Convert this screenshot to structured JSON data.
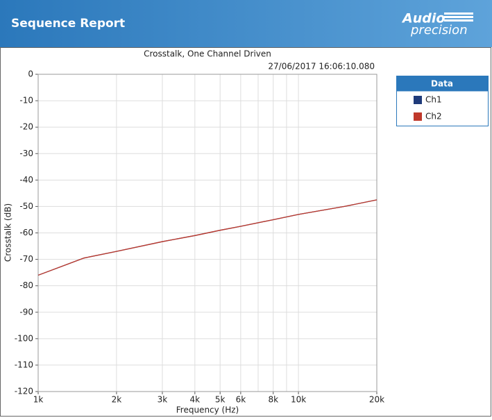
{
  "header": {
    "title": "Sequence Report",
    "logo": [
      "Audio",
      "precision"
    ]
  },
  "chart_data": {
    "type": "line",
    "title": "Crosstalk, One Channel Driven",
    "subtitle": "27/06/2017 16:06:10.080",
    "xlabel": "Frequency (Hz)",
    "ylabel": "Crosstalk (dB)",
    "logo": "AP",
    "x": [
      1000,
      1500,
      2000,
      3000,
      4000,
      5000,
      6000,
      8000,
      10000,
      15000,
      20000
    ],
    "series": [
      {
        "name": "Ch1",
        "color": "#1f3b7a",
        "values": [
          -76,
          -69.5,
          -67,
          -63.3,
          -61,
          -59,
          -57.5,
          -55,
          -53,
          -50,
          -47.5
        ]
      },
      {
        "name": "Ch2",
        "color": "#c0392b",
        "values": [
          -76,
          -69.5,
          -67,
          -63.3,
          -61,
          -59,
          -57.5,
          -55,
          -53,
          -50,
          -47.5
        ]
      }
    ],
    "xscale": "log",
    "xlim": [
      1000,
      20000
    ],
    "ylim": [
      -120,
      0
    ],
    "xticks": [
      {
        "value": 1000,
        "label": "1k"
      },
      {
        "value": 2000,
        "label": "2k"
      },
      {
        "value": 3000,
        "label": "3k"
      },
      {
        "value": 4000,
        "label": "4k"
      },
      {
        "value": 5000,
        "label": "5k"
      },
      {
        "value": 6000,
        "label": "6k"
      },
      {
        "value": 8000,
        "label": "8k"
      },
      {
        "value": 10000,
        "label": "10k"
      },
      {
        "value": 20000,
        "label": "20k"
      }
    ],
    "xminor_ticks": [
      7000,
      9000
    ],
    "yticks": [
      0,
      -10,
      -20,
      -30,
      -40,
      -50,
      -60,
      -70,
      -80,
      -90,
      -100,
      -110,
      -120
    ],
    "grid": true,
    "legend_title": "Data",
    "legend": "right"
  }
}
